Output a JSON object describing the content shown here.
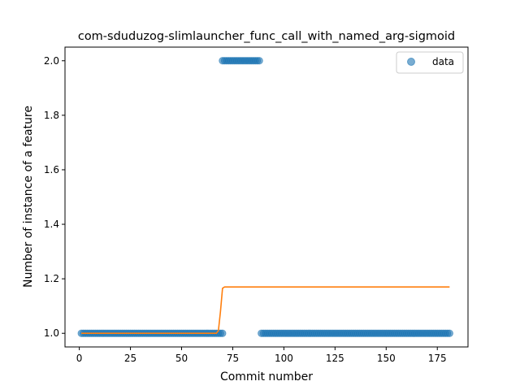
{
  "chart_data": {
    "type": "scatter",
    "title": "com-sduduzog-slimlauncher_func_call_with_named_arg-sigmoid",
    "xlabel": "Commit number",
    "ylabel": "Number of instance of a feature",
    "xlim": [
      -7,
      190
    ],
    "ylim": [
      0.95,
      2.05
    ],
    "xticks": [
      0,
      25,
      50,
      75,
      100,
      125,
      150,
      175
    ],
    "xtick_labels": [
      "0",
      "25",
      "50",
      "75",
      "100",
      "125",
      "150",
      "175"
    ],
    "yticks": [
      1.0,
      1.2,
      1.4,
      1.6,
      1.8,
      2.0
    ],
    "ytick_labels": [
      "1.0",
      "1.2",
      "1.4",
      "1.6",
      "1.8",
      "2.0"
    ],
    "grid": false,
    "legend": {
      "position": "top-right",
      "entries": [
        "data"
      ]
    },
    "series": [
      {
        "name": "data",
        "kind": "scatter",
        "color": "#1f77b4",
        "segments": [
          {
            "x_start": 1,
            "x_end": 70,
            "y": 1
          },
          {
            "x_start": 70,
            "x_end": 88,
            "y": 2
          },
          {
            "x_start": 89,
            "x_end": 181,
            "y": 1
          }
        ]
      },
      {
        "kind": "line",
        "color": "#ff7f0e",
        "x": [
          1,
          67,
          68,
          69,
          70,
          71,
          181
        ],
        "y": [
          1.0,
          1.0,
          1.01,
          1.08,
          1.165,
          1.17,
          1.17
        ]
      }
    ]
  }
}
